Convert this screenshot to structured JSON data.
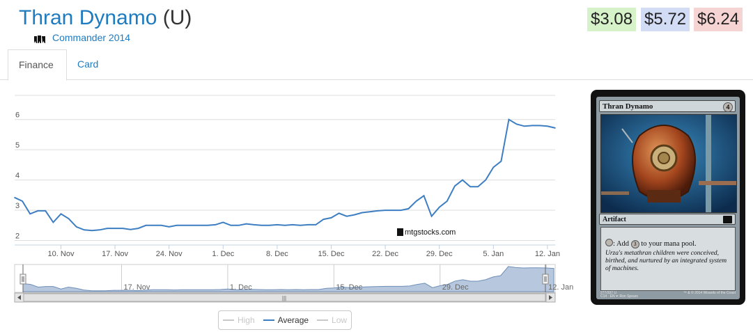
{
  "header": {
    "card_name": "Thran Dynamo",
    "rarity": "(U)",
    "set_name": "Commander 2014",
    "set_icon": "commander-set-icon"
  },
  "prices": {
    "low": "$3.08",
    "average": "$5.72",
    "high": "$6.24",
    "colors": {
      "low": "#d6f2c8",
      "average": "#d3dcf5",
      "high": "#f6d4d4"
    }
  },
  "tabs": [
    {
      "label": "Finance",
      "active": true
    },
    {
      "label": "Card",
      "active": false
    }
  ],
  "chart_data": {
    "type": "line",
    "series": [
      {
        "name": "Average",
        "x": [
          "2014-11-04",
          "2014-11-05",
          "2014-11-06",
          "2014-11-07",
          "2014-11-08",
          "2014-11-09",
          "2014-11-10",
          "2014-11-11",
          "2014-11-12",
          "2014-11-13",
          "2014-11-14",
          "2014-11-15",
          "2014-11-16",
          "2014-11-17",
          "2014-11-18",
          "2014-11-19",
          "2014-11-20",
          "2014-11-21",
          "2014-11-22",
          "2014-11-23",
          "2014-11-24",
          "2014-11-25",
          "2014-11-26",
          "2014-11-27",
          "2014-11-28",
          "2014-11-29",
          "2014-11-30",
          "2014-12-01",
          "2014-12-02",
          "2014-12-03",
          "2014-12-04",
          "2014-12-05",
          "2014-12-06",
          "2014-12-07",
          "2014-12-08",
          "2014-12-09",
          "2014-12-10",
          "2014-12-11",
          "2014-12-12",
          "2014-12-13",
          "2014-12-14",
          "2014-12-15",
          "2014-12-16",
          "2014-12-17",
          "2014-12-18",
          "2014-12-19",
          "2014-12-20",
          "2014-12-21",
          "2014-12-22",
          "2014-12-23",
          "2014-12-24",
          "2014-12-25",
          "2014-12-26",
          "2014-12-27",
          "2014-12-28",
          "2014-12-29",
          "2014-12-30",
          "2014-12-31",
          "2015-01-01",
          "2015-01-02",
          "2015-01-03",
          "2015-01-04",
          "2015-01-05",
          "2015-01-06",
          "2015-01-07",
          "2015-01-08",
          "2015-01-09",
          "2015-01-10",
          "2015-01-11",
          "2015-01-12",
          "2015-01-13"
        ],
        "y": [
          3.42,
          3.3,
          2.88,
          2.98,
          2.98,
          2.6,
          2.88,
          2.72,
          2.45,
          2.35,
          2.33,
          2.35,
          2.4,
          2.4,
          2.4,
          2.36,
          2.4,
          2.5,
          2.5,
          2.5,
          2.45,
          2.5,
          2.5,
          2.5,
          2.5,
          2.5,
          2.52,
          2.6,
          2.5,
          2.5,
          2.55,
          2.52,
          2.5,
          2.5,
          2.52,
          2.5,
          2.52,
          2.5,
          2.52,
          2.52,
          2.7,
          2.75,
          2.9,
          2.8,
          2.85,
          2.92,
          2.95,
          2.98,
          3.0,
          3.0,
          3.0,
          3.05,
          3.3,
          3.48,
          2.8,
          3.1,
          3.3,
          3.8,
          4.0,
          3.78,
          3.78,
          4.0,
          4.42,
          4.62,
          6.0,
          5.85,
          5.78,
          5.8,
          5.8,
          5.78,
          5.72
        ]
      }
    ],
    "legend": [
      "High",
      "Average",
      "Low"
    ],
    "legend_active": "Average",
    "legend_placement": "bottom-center",
    "y_ticks": [
      2,
      3,
      4,
      5,
      6
    ],
    "x_ticks": [
      "10. Nov",
      "17. Nov",
      "24. Nov",
      "1. Dec",
      "8. Dec",
      "15. Dec",
      "22. Dec",
      "29. Dec",
      "5. Jan",
      "12. Jan"
    ],
    "navigator_ticks": [
      "17. Nov",
      "1. Dec",
      "15. Dec",
      "29. Dec",
      "12. Jan"
    ],
    "ylim": [
      1.85,
      6.8
    ],
    "grid": true,
    "watermark": "mtgstocks.com",
    "line_color": "#3d7ec2",
    "navigator_fill": "#b7c8de"
  },
  "card_image": {
    "name": "Thran Dynamo",
    "cost": "4",
    "type": "Artifact",
    "rule_prefix": ": Add",
    "rule_mana": "3",
    "rule_suffix": "to your mana pool.",
    "flavor": "Urza's metathran children were conceived, birthed, and nurtured by an integrated system of machines.",
    "footer_left": "277/337 U",
    "footer_left2": "C14 · EN  ✒ Ron Spears",
    "footer_right": "™ & © 2014 Wizards of the Coast"
  },
  "scrollbar": {
    "grip": "|||"
  }
}
